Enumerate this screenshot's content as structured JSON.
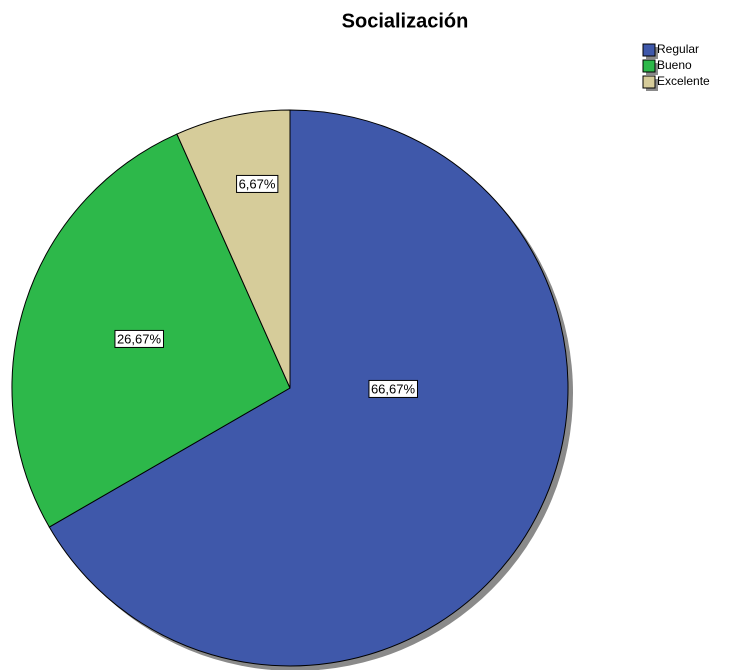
{
  "chart_data": {
    "type": "pie",
    "title": "Socialización",
    "categories": [
      "Regular",
      "Bueno",
      "Excelente"
    ],
    "values": [
      66.67,
      26.67,
      6.67
    ],
    "value_labels": [
      "66,67%",
      "26,67%",
      "6,67%"
    ],
    "colors": [
      "#3f58aa",
      "#2db84a",
      "#d6cc9a"
    ],
    "legend": "top-right"
  }
}
